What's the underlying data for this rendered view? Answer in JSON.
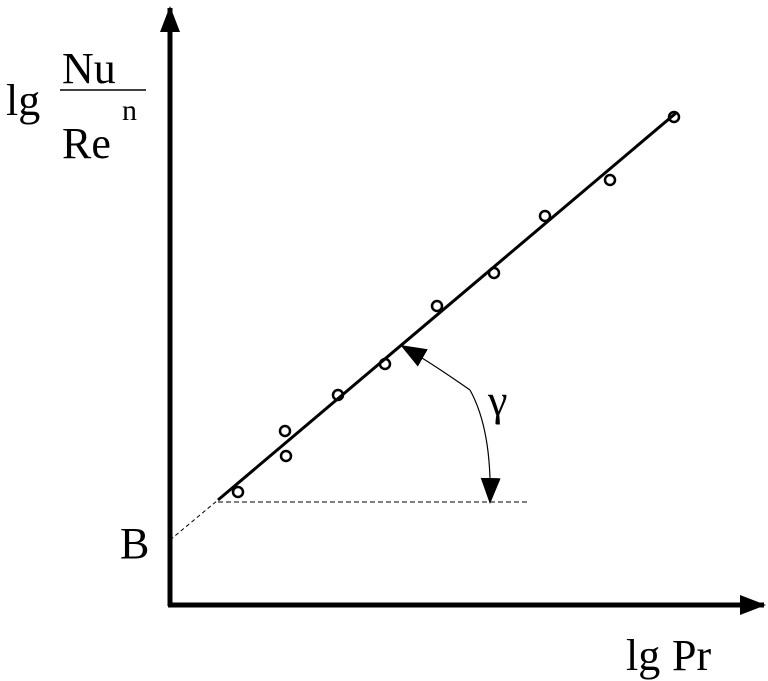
{
  "y_label": {
    "prefix": "lg",
    "numerator": "Nu",
    "denominator": "Re",
    "exponent": "n"
  },
  "x_label": {
    "prefix": "lg",
    "variable": "Pr"
  },
  "intercept_label": "B",
  "angle_label": "γ"
}
